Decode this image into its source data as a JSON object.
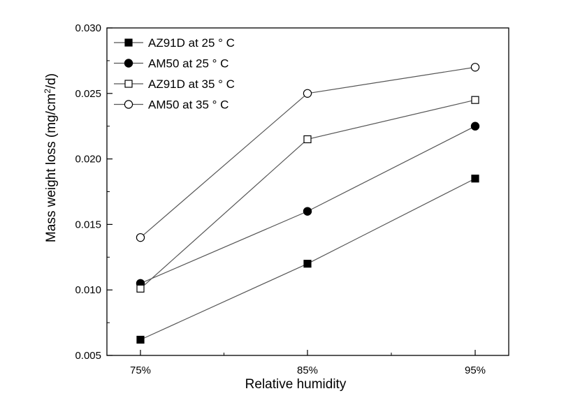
{
  "chart_data": {
    "type": "line",
    "title": "",
    "xlabel": "Relative humidity",
    "ylabel": "Mass weight loss (mg/cm²/d)",
    "ylabel_parts": {
      "pre": "Mass weight loss (mg/cm",
      "sup": "2",
      "post": "/d)"
    },
    "categories": [
      "75%",
      "85%",
      "95%"
    ],
    "ylim": [
      0.005,
      0.03
    ],
    "yticks": [
      "0.005",
      "0.010",
      "0.015",
      "0.020",
      "0.025",
      "0.030"
    ],
    "grid": false,
    "legend_position": "top-left",
    "series": [
      {
        "name": "AZ91D at 25 ° C",
        "marker": "square",
        "filled": true,
        "values": [
          0.0062,
          0.012,
          0.0185
        ]
      },
      {
        "name": "AM50 at 25 ° C",
        "marker": "circle",
        "filled": true,
        "values": [
          0.0105,
          0.016,
          0.0225
        ]
      },
      {
        "name": "AZ91D at 35 ° C",
        "marker": "square",
        "filled": false,
        "values": [
          0.0101,
          0.0215,
          0.0245
        ]
      },
      {
        "name": "AM50 at 35 ° C",
        "marker": "circle",
        "filled": false,
        "values": [
          0.014,
          0.025,
          0.027
        ]
      }
    ]
  }
}
